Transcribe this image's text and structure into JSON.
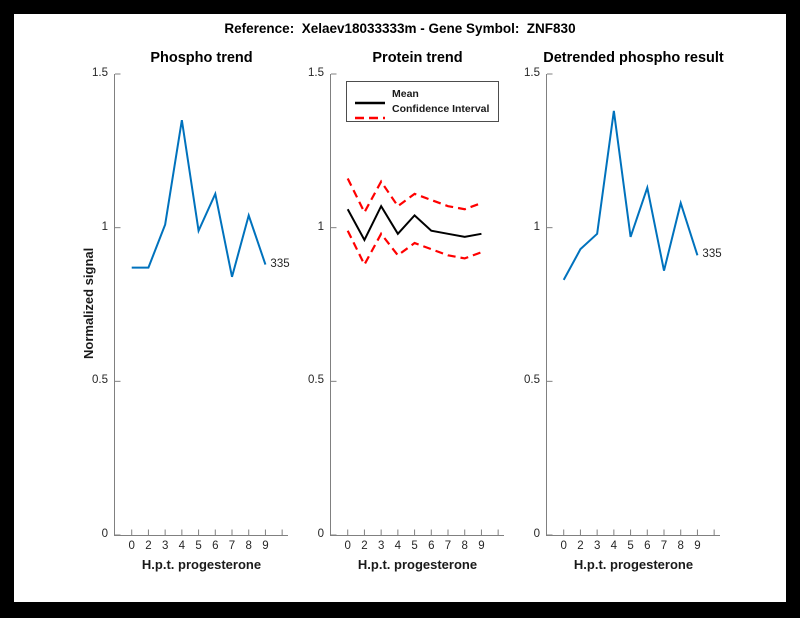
{
  "figure": {
    "title": "Reference:  Xelaev18033333m - Gene Symbol:  ZNF830",
    "ylabel": "Normalized signal",
    "background_color": "#000000",
    "canvas_color": "#ffffff"
  },
  "colors": {
    "phospho_blue": "#0072BD",
    "ci_red": "#FF0000",
    "mean_black": "#000000",
    "axis_line": "#808080",
    "tick_text": "#262626"
  },
  "chart_data": [
    {
      "type": "line",
      "title": "Phospho trend",
      "xlabel": "H.p.t. progesterone",
      "ylabel": "Normalized signal",
      "x_tick_labels": [
        "0",
        "2",
        "3",
        "4",
        "5",
        "6",
        "7",
        "8",
        "9"
      ],
      "y_tick_labels": [
        "0",
        "0.5",
        "1",
        "1.5"
      ],
      "y_ticks": [
        0,
        0.5,
        1,
        1.5
      ],
      "ylim": [
        0,
        1.5
      ],
      "grid": false,
      "series": [
        {
          "name": "phospho-signal",
          "color": "#0072BD",
          "style": "solid",
          "values": [
            0.87,
            0.87,
            1.01,
            1.35,
            0.99,
            1.11,
            0.84,
            1.04,
            0.88
          ]
        }
      ],
      "end_label": "335"
    },
    {
      "type": "line",
      "title": "Protein trend",
      "xlabel": "H.p.t. progesterone",
      "x_tick_labels": [
        "0",
        "2",
        "3",
        "4",
        "5",
        "6",
        "7",
        "8",
        "9"
      ],
      "y_tick_labels": [
        "0",
        "0.5",
        "1",
        "1.5"
      ],
      "y_ticks": [
        0,
        0.5,
        1,
        1.5
      ],
      "ylim": [
        0,
        1.5
      ],
      "grid": false,
      "series": [
        {
          "name": "mean",
          "color": "#000000",
          "style": "solid",
          "values": [
            1.06,
            0.96,
            1.07,
            0.98,
            1.04,
            0.99,
            0.98,
            0.97,
            0.98
          ]
        },
        {
          "name": "confidence-upper",
          "color": "#FF0000",
          "style": "dashed",
          "values": [
            1.16,
            1.05,
            1.15,
            1.07,
            1.11,
            1.09,
            1.07,
            1.06,
            1.08
          ]
        },
        {
          "name": "confidence-lower",
          "color": "#FF0000",
          "style": "dashed",
          "values": [
            0.99,
            0.88,
            0.98,
            0.91,
            0.95,
            0.93,
            0.91,
            0.9,
            0.92
          ]
        }
      ],
      "legend": {
        "position": "top-left",
        "items": [
          {
            "label": "Mean",
            "color": "#000000",
            "style": "solid"
          },
          {
            "label": "Confidence Interval",
            "color": "#FF0000",
            "style": "dashed"
          }
        ]
      }
    },
    {
      "type": "line",
      "title": "Detrended phospho result",
      "xlabel": "H.p.t. progesterone",
      "x_tick_labels": [
        "0",
        "2",
        "3",
        "4",
        "5",
        "6",
        "7",
        "8",
        "9"
      ],
      "y_tick_labels": [
        "0",
        "0.5",
        "1",
        "1.5"
      ],
      "y_ticks": [
        0,
        0.5,
        1,
        1.5
      ],
      "ylim": [
        0,
        1.5
      ],
      "grid": false,
      "series": [
        {
          "name": "detrended-phospho",
          "color": "#0072BD",
          "style": "solid",
          "values": [
            0.83,
            0.93,
            0.98,
            1.38,
            0.97,
            1.13,
            0.86,
            1.08,
            0.91
          ]
        }
      ],
      "end_label": "335"
    }
  ]
}
